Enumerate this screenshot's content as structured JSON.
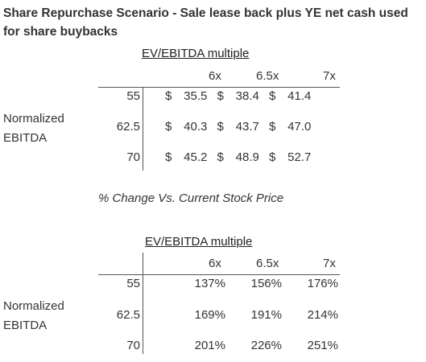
{
  "title": "Share Repurchase Scenario - Sale lease back plus YE net cash used for share buybacks",
  "table1": {
    "header": "EV/EBITDA multiple",
    "columns": [
      "6x",
      "6.5x",
      "7x"
    ],
    "row_group_label_line1": "Normalized",
    "row_group_label_line2": "EBITDA",
    "rows": [
      {
        "label": "55",
        "values": [
          "35.5",
          "38.4",
          "41.4"
        ]
      },
      {
        "label": "62.5",
        "values": [
          "40.3",
          "43.7",
          "47.0"
        ]
      },
      {
        "label": "70",
        "values": [
          "45.2",
          "48.9",
          "52.7"
        ]
      }
    ],
    "currency": "$"
  },
  "subtitle": "% Change Vs. Current Stock Price",
  "table2": {
    "header": "EV/EBITDA multiple",
    "columns": [
      "6x",
      "6.5x",
      "7x"
    ],
    "row_group_label_line1": "Normalized",
    "row_group_label_line2": "EBITDA",
    "rows": [
      {
        "label": "55",
        "values": [
          "137%",
          "156%",
          "176%"
        ]
      },
      {
        "label": "62.5",
        "values": [
          "169%",
          "191%",
          "214%"
        ]
      },
      {
        "label": "70",
        "values": [
          "201%",
          "226%",
          "251%"
        ]
      }
    ]
  }
}
